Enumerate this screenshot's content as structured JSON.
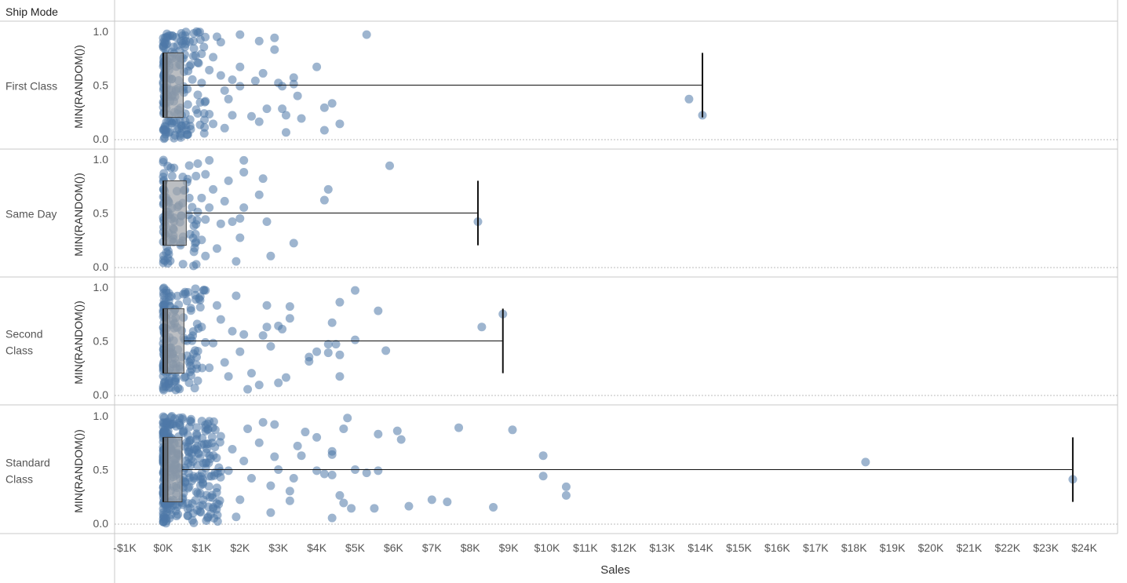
{
  "chart_data": {
    "type": "scatter",
    "subtype": "jitter strip plot with box-and-whisker",
    "row_header": "Ship Mode",
    "xlabel": "Sales",
    "ylabel": "MIN(RANDOM())",
    "xlim": [
      -1200,
      24900
    ],
    "ylim": [
      0,
      1
    ],
    "x_ticks": [
      -1000,
      0,
      1000,
      2000,
      3000,
      4000,
      5000,
      6000,
      7000,
      8000,
      9000,
      10000,
      11000,
      12000,
      13000,
      14000,
      15000,
      16000,
      17000,
      18000,
      19000,
      20000,
      21000,
      22000,
      23000,
      24000
    ],
    "x_tick_labels": [
      "-$1K",
      "$0K",
      "$1K",
      "$2K",
      "$3K",
      "$4K",
      "$5K",
      "$6K",
      "$7K",
      "$8K",
      "$9K",
      "$10K",
      "$11K",
      "$12K",
      "$13K",
      "$14K",
      "$15K",
      "$16K",
      "$17K",
      "$18K",
      "$19K",
      "$20K",
      "$21K",
      "$22K",
      "$23K",
      "$24K"
    ],
    "y_ticks": [
      0.0,
      0.5,
      1.0
    ],
    "y_tick_labels": [
      "0.0",
      "0.5",
      "1.0"
    ],
    "point_color": "#4e79a7",
    "grid": false,
    "legend": "none",
    "rows": [
      {
        "name": "First Class",
        "box": {
          "min": 0,
          "q1": 0,
          "median": 100,
          "q3": 520,
          "max": 14050
        },
        "points": [
          [
            5300,
            0.97
          ],
          [
            2500,
            0.91
          ],
          [
            2900,
            0.94
          ],
          [
            2900,
            0.83
          ],
          [
            2000,
            0.97
          ],
          [
            4000,
            0.67
          ],
          [
            3000,
            0.52
          ],
          [
            3100,
            0.49
          ],
          [
            3400,
            0.57
          ],
          [
            3400,
            0.51
          ],
          [
            3500,
            0.4
          ],
          [
            4200,
            0.29
          ],
          [
            4400,
            0.33
          ],
          [
            3200,
            0.22
          ],
          [
            3100,
            0.28
          ],
          [
            3600,
            0.19
          ],
          [
            4600,
            0.14
          ],
          [
            4200,
            0.08
          ],
          [
            3200,
            0.06
          ],
          [
            2500,
            0.16
          ],
          [
            2700,
            0.28
          ],
          [
            2300,
            0.21
          ],
          [
            2400,
            0.54
          ],
          [
            2600,
            0.61
          ],
          [
            2000,
            0.67
          ],
          [
            2000,
            0.49
          ],
          [
            1800,
            0.55
          ],
          [
            1700,
            0.37
          ],
          [
            1600,
            0.45
          ],
          [
            1800,
            0.22
          ],
          [
            1600,
            0.1
          ],
          [
            1500,
            0.59
          ],
          [
            1500,
            0.9
          ],
          [
            1400,
            0.95
          ],
          [
            1300,
            0.76
          ],
          [
            1200,
            0.64
          ],
          [
            1200,
            0.23
          ],
          [
            1100,
            0.35
          ],
          [
            1000,
            0.52
          ],
          [
            1300,
            0.14
          ],
          [
            900,
            0.71
          ],
          [
            800,
            0.84
          ],
          [
            900,
            0.41
          ],
          [
            700,
            0.18
          ],
          [
            13700,
            0.37
          ],
          [
            14050,
            0.22
          ]
        ]
      },
      {
        "name": "Same Day",
        "box": {
          "min": 0,
          "q1": 0,
          "median": 80,
          "q3": 600,
          "max": 8200
        },
        "points": [
          [
            5900,
            0.94
          ],
          [
            4300,
            0.72
          ],
          [
            4200,
            0.62
          ],
          [
            3400,
            0.22
          ],
          [
            2800,
            0.1
          ],
          [
            2700,
            0.42
          ],
          [
            2500,
            0.67
          ],
          [
            2600,
            0.82
          ],
          [
            2100,
            0.88
          ],
          [
            2100,
            0.99
          ],
          [
            2100,
            0.55
          ],
          [
            2000,
            0.45
          ],
          [
            2000,
            0.27
          ],
          [
            1900,
            0.05
          ],
          [
            1800,
            0.42
          ],
          [
            1600,
            0.61
          ],
          [
            1700,
            0.8
          ],
          [
            1500,
            0.4
          ],
          [
            1400,
            0.17
          ],
          [
            1300,
            0.72
          ],
          [
            1200,
            0.55
          ],
          [
            1200,
            0.99
          ],
          [
            1100,
            0.86
          ],
          [
            1100,
            0.44
          ],
          [
            1100,
            0.1
          ],
          [
            1000,
            0.64
          ],
          [
            1000,
            0.25
          ],
          [
            900,
            0.96
          ],
          [
            900,
            0.51
          ],
          [
            800,
            0.38
          ],
          [
            800,
            0.14
          ],
          [
            8200,
            0.42
          ]
        ]
      },
      {
        "name": "Second Class",
        "box": {
          "min": 0,
          "q1": 0,
          "median": 110,
          "q3": 540,
          "max": 8850
        },
        "points": [
          [
            5000,
            0.97
          ],
          [
            5600,
            0.78
          ],
          [
            4600,
            0.86
          ],
          [
            4400,
            0.67
          ],
          [
            5000,
            0.51
          ],
          [
            4500,
            0.47
          ],
          [
            4600,
            0.37
          ],
          [
            4600,
            0.17
          ],
          [
            4300,
            0.47
          ],
          [
            4300,
            0.39
          ],
          [
            4000,
            0.4
          ],
          [
            3800,
            0.35
          ],
          [
            3800,
            0.31
          ],
          [
            5800,
            0.41
          ],
          [
            3300,
            0.82
          ],
          [
            3300,
            0.71
          ],
          [
            3100,
            0.61
          ],
          [
            3000,
            0.64
          ],
          [
            2800,
            0.45
          ],
          [
            2700,
            0.63
          ],
          [
            2700,
            0.83
          ],
          [
            2600,
            0.55
          ],
          [
            3200,
            0.16
          ],
          [
            3000,
            0.11
          ],
          [
            2500,
            0.09
          ],
          [
            2300,
            0.2
          ],
          [
            2200,
            0.05
          ],
          [
            2100,
            0.56
          ],
          [
            2000,
            0.4
          ],
          [
            1900,
            0.92
          ],
          [
            1800,
            0.59
          ],
          [
            1700,
            0.17
          ],
          [
            1600,
            0.3
          ],
          [
            1500,
            0.7
          ],
          [
            1400,
            0.83
          ],
          [
            1300,
            0.48
          ],
          [
            1200,
            0.25
          ],
          [
            1100,
            0.97
          ],
          [
            1000,
            0.63
          ],
          [
            900,
            0.13
          ],
          [
            8300,
            0.63
          ],
          [
            8850,
            0.75
          ]
        ]
      },
      {
        "name": "Standard Class",
        "box": {
          "min": 0,
          "q1": 0,
          "median": 120,
          "q3": 490,
          "max": 23700
        },
        "points": [
          [
            7700,
            0.89
          ],
          [
            9100,
            0.87
          ],
          [
            6100,
            0.86
          ],
          [
            6200,
            0.78
          ],
          [
            5600,
            0.83
          ],
          [
            5000,
            0.5
          ],
          [
            5300,
            0.47
          ],
          [
            5600,
            0.49
          ],
          [
            4800,
            0.98
          ],
          [
            4700,
            0.88
          ],
          [
            4400,
            0.67
          ],
          [
            4400,
            0.64
          ],
          [
            4400,
            0.45
          ],
          [
            4600,
            0.26
          ],
          [
            4700,
            0.19
          ],
          [
            4900,
            0.14
          ],
          [
            4400,
            0.05
          ],
          [
            5500,
            0.14
          ],
          [
            6400,
            0.16
          ],
          [
            7000,
            0.22
          ],
          [
            7400,
            0.2
          ],
          [
            8600,
            0.15
          ],
          [
            9900,
            0.63
          ],
          [
            9900,
            0.44
          ],
          [
            10500,
            0.34
          ],
          [
            10500,
            0.26
          ],
          [
            4200,
            0.46
          ],
          [
            4000,
            0.49
          ],
          [
            4000,
            0.8
          ],
          [
            3700,
            0.85
          ],
          [
            3600,
            0.63
          ],
          [
            3500,
            0.72
          ],
          [
            3400,
            0.42
          ],
          [
            3300,
            0.3
          ],
          [
            3300,
            0.21
          ],
          [
            3000,
            0.5
          ],
          [
            2900,
            0.92
          ],
          [
            2900,
            0.62
          ],
          [
            2800,
            0.35
          ],
          [
            2800,
            0.1
          ],
          [
            2600,
            0.94
          ],
          [
            2500,
            0.75
          ],
          [
            2300,
            0.42
          ],
          [
            2200,
            0.88
          ],
          [
            2100,
            0.58
          ],
          [
            2000,
            0.22
          ],
          [
            1900,
            0.06
          ],
          [
            1800,
            0.69
          ],
          [
            1700,
            0.49
          ],
          [
            1500,
            0.81
          ],
          [
            1400,
            0.33
          ],
          [
            1300,
            0.15
          ],
          [
            1200,
            0.95
          ],
          [
            1100,
            0.56
          ],
          [
            1000,
            0.73
          ],
          [
            900,
            0.28
          ],
          [
            800,
            0.42
          ],
          [
            18300,
            0.57
          ],
          [
            23700,
            0.41
          ]
        ]
      }
    ]
  }
}
